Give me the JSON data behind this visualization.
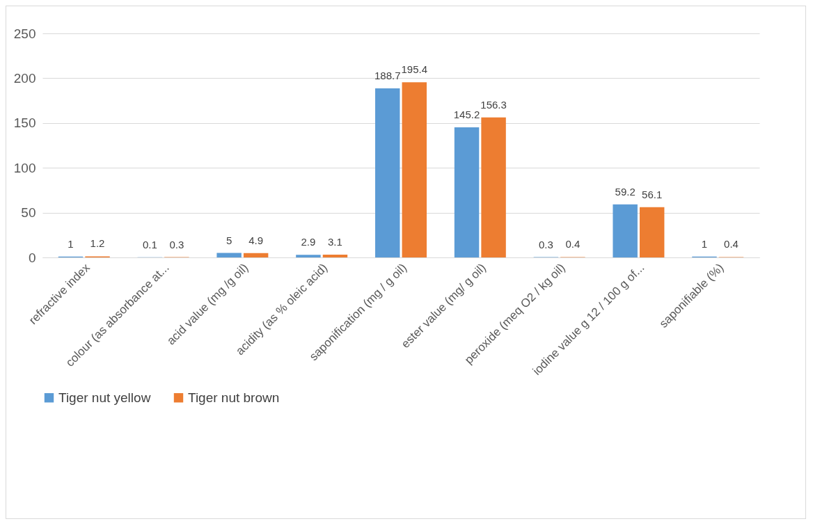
{
  "chart_data": {
    "type": "bar",
    "categories": [
      "refractive index",
      "colour (as absorbance at...",
      "acid value (mg /g oil)",
      "acidity (as % oleic acid)",
      "saponification (mg / g oil)",
      "ester value (mg/ g oil)",
      "peroxide (meq O2 / kg oil)",
      "iodine value g 12 / 100 g of...",
      "saponifiable (%)"
    ],
    "series": [
      {
        "name": "Tiger nut yellow",
        "color": "#5b9bd5",
        "values": [
          1,
          0.1,
          5,
          2.9,
          188.7,
          145.2,
          0.3,
          59.2,
          1
        ]
      },
      {
        "name": "Tiger nut brown",
        "color": "#ed7d31",
        "values": [
          1.2,
          0.3,
          4.9,
          3.1,
          195.4,
          156.3,
          0.4,
          56.1,
          0.4
        ]
      }
    ],
    "ylim": [
      0,
      250
    ],
    "yticks": [
      0,
      50,
      100,
      150,
      200,
      250
    ],
    "grid": "y",
    "legend": "bottom",
    "data_labels": true
  }
}
